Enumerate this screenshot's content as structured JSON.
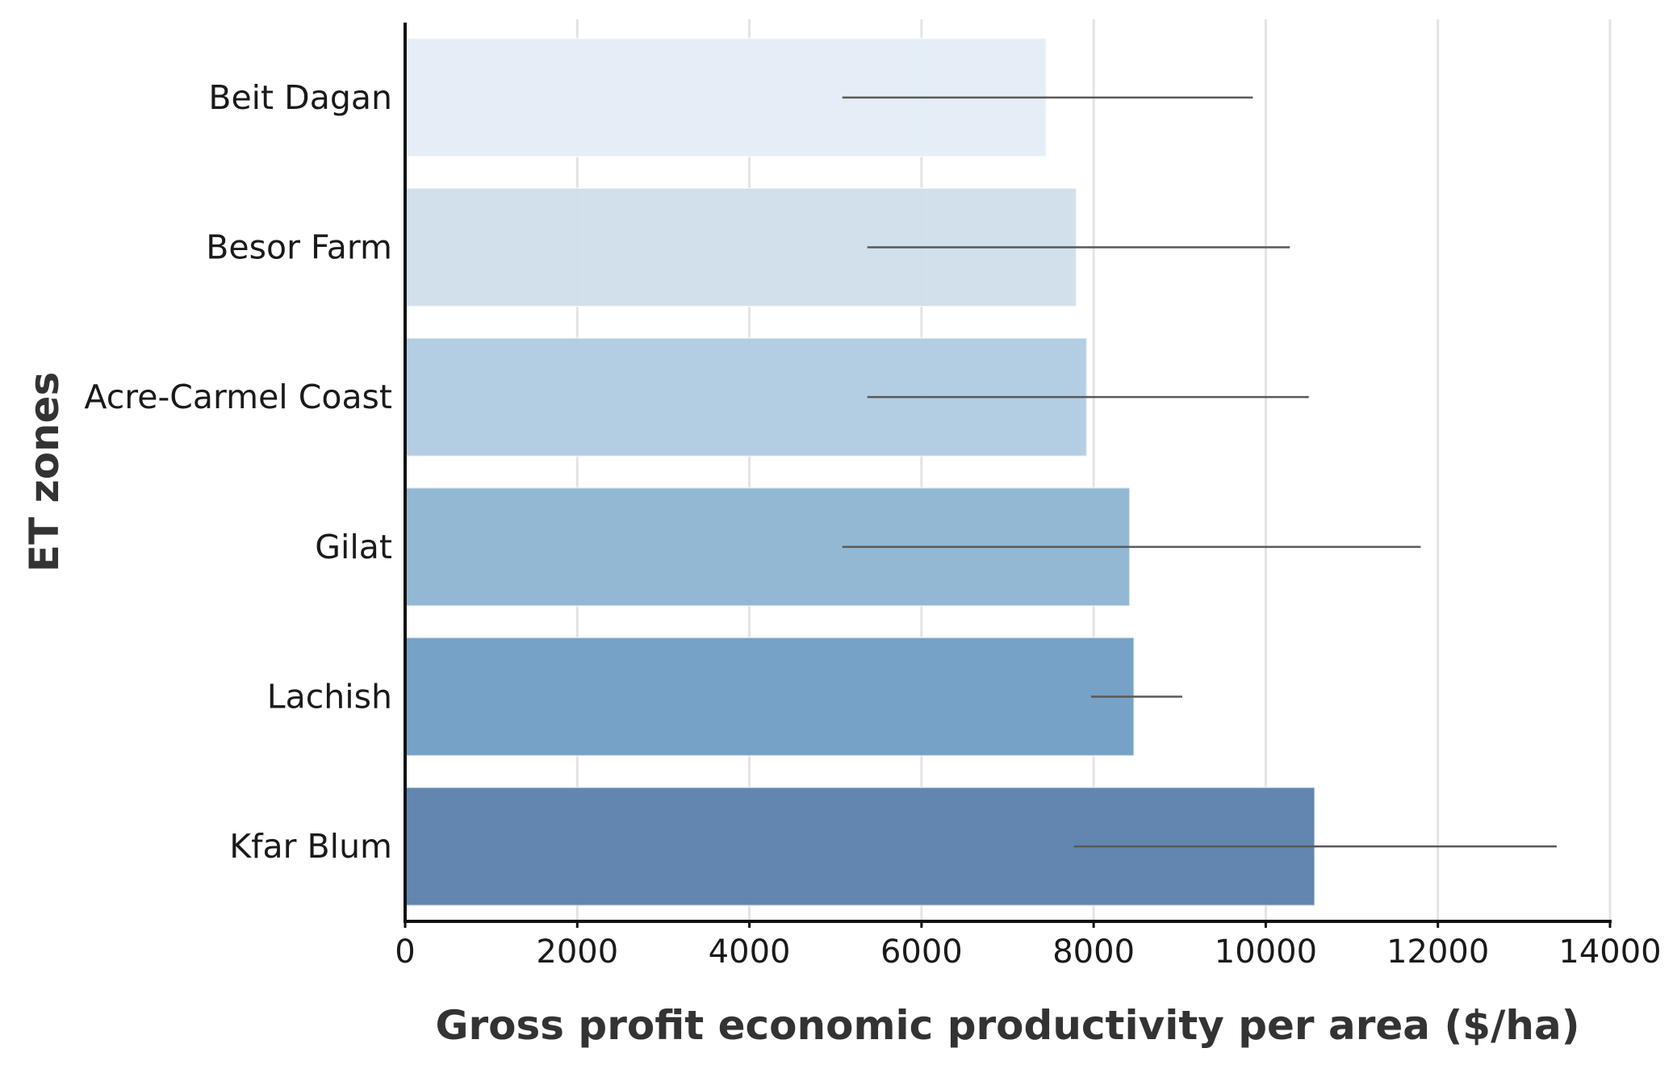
{
  "chart_data": {
    "type": "bar",
    "orientation": "horizontal",
    "title": "",
    "xlabel": "Gross profit economic productivity per area ($/ha)",
    "ylabel": "ET zones",
    "xlim": [
      0,
      14000
    ],
    "xticks": [
      0,
      2000,
      4000,
      6000,
      8000,
      10000,
      12000,
      14000
    ],
    "grid": "vertical",
    "categories": [
      "Beit Dagan",
      "Besor Farm",
      "Acre-Carmel Coast",
      "Gilat",
      "Lachish",
      "Kfar Blum"
    ],
    "values": [
      7450,
      7800,
      7920,
      8420,
      8470,
      10570
    ],
    "error_low": [
      5080,
      5370,
      5370,
      5080,
      7970,
      7770
    ],
    "error_high": [
      9850,
      10280,
      10500,
      11800,
      9030,
      13380
    ],
    "colors": [
      "#e4edf6",
      "#cfdeea",
      "#afcbe0",
      "#8db4d2",
      "#6f9dc4",
      "#5a80ab"
    ],
    "error_color": "#595959"
  }
}
